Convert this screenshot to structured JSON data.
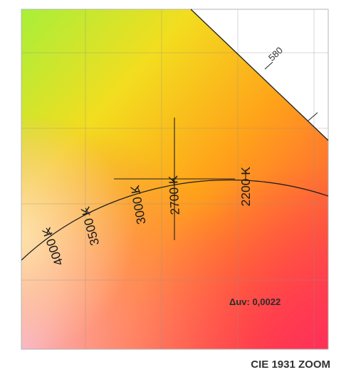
{
  "caption": "CIE 1931 ZOOM",
  "delta_uv": "Δuv: 0,0022",
  "wavelength_label": "580",
  "cct_labels": {
    "k4000": "4000 K",
    "k3500": "3500 K",
    "k3000": "3000 K",
    "k2700": "2700 K",
    "k2200": "2200 K"
  },
  "colors": {
    "yellow_green": "#a8ef3a",
    "yellow": "#f7d21c",
    "orange": "#ff8f1c",
    "red": "#ff3b55",
    "pink": "#f6a6c0"
  }
}
